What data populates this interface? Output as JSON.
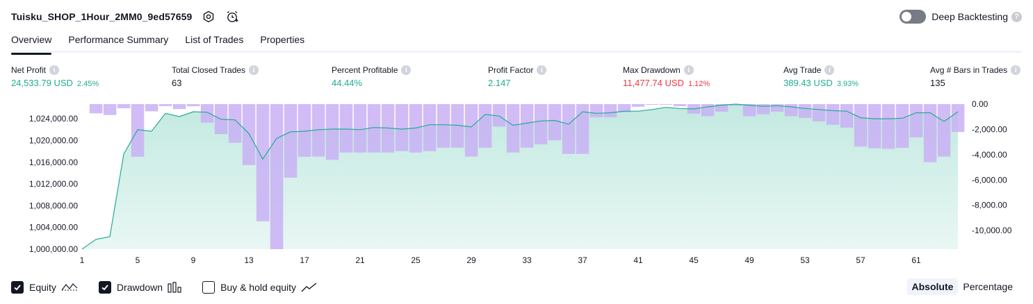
{
  "header": {
    "title": "Tuisku_SHOP_1Hour_2MM0_9ed57659",
    "icons": [
      "settings-icon",
      "alarm-add-icon"
    ]
  },
  "deep_backtesting": {
    "label": "Deep Backtesting",
    "enabled": false
  },
  "tabs": [
    {
      "label": "Overview",
      "active": true
    },
    {
      "label": "Performance Summary",
      "active": false
    },
    {
      "label": "List of Trades",
      "active": false
    },
    {
      "label": "Properties",
      "active": false
    }
  ],
  "metrics": [
    {
      "label": "Net Profit",
      "value": "24,533.79 USD",
      "sub": "2.45%",
      "color": "#22ab94"
    },
    {
      "label": "Total Closed Trades",
      "value": "63",
      "sub": "",
      "color": "#131722"
    },
    {
      "label": "Percent Profitable",
      "value": "44.44%",
      "sub": "",
      "color": "#22ab94"
    },
    {
      "label": "Profit Factor",
      "value": "2.147",
      "sub": "",
      "color": "#22ab94"
    },
    {
      "label": "Max Drawdown",
      "value": "11,477.74 USD",
      "sub": "1.12%",
      "color": "#f23645"
    },
    {
      "label": "Avg Trade",
      "value": "389.43 USD",
      "sub": "3.93%",
      "color": "#22ab94"
    },
    {
      "label": "Avg # Bars in Trades",
      "value": "135",
      "sub": "",
      "color": "#131722"
    }
  ],
  "chart_data": {
    "type": "area",
    "x_ticks": [
      "1",
      "5",
      "9",
      "13",
      "17",
      "21",
      "25",
      "29",
      "33",
      "37",
      "41",
      "45",
      "49",
      "53",
      "57",
      "61"
    ],
    "left_axis_ticks": [
      "1,024,000.00",
      "1,020,000.00",
      "1,016,000.00",
      "1,012,000.00",
      "1,008,000.00",
      "1,004,000.00",
      "1,000,000.00"
    ],
    "right_axis_ticks": [
      "0.00",
      "-2,000.00",
      "-4,000.00",
      "-6,000.00",
      "-8,000.00",
      "-10,000.00"
    ],
    "left_ylim": [
      1000000,
      1026700
    ],
    "right_ylim": [
      -11477.74,
      0
    ],
    "x": [
      1,
      2,
      3,
      4,
      5,
      6,
      7,
      8,
      9,
      10,
      11,
      12,
      13,
      14,
      15,
      16,
      17,
      18,
      19,
      20,
      21,
      22,
      23,
      24,
      25,
      26,
      27,
      28,
      29,
      30,
      31,
      32,
      33,
      34,
      35,
      36,
      37,
      38,
      39,
      40,
      41,
      42,
      43,
      44,
      45,
      46,
      47,
      48,
      49,
      50,
      51,
      52,
      53,
      54,
      55,
      56,
      57,
      58,
      59,
      60,
      61,
      62,
      63,
      64
    ],
    "series": [
      {
        "name": "Equity",
        "values": [
          1000000,
          1001800,
          1002300,
          1017500,
          1022000,
          1021700,
          1025000,
          1024400,
          1025300,
          1025200,
          1023900,
          1023800,
          1021300,
          1016600,
          1020400,
          1021600,
          1021700,
          1022000,
          1022100,
          1022100,
          1022000,
          1022400,
          1022300,
          1022100,
          1022300,
          1022900,
          1022900,
          1022800,
          1022500,
          1024800,
          1024500,
          1022800,
          1023200,
          1023600,
          1023700,
          1023000,
          1025300,
          1025000,
          1025100,
          1025400,
          1025400,
          1025700,
          1026100,
          1025900,
          1025800,
          1026200,
          1026500,
          1026700,
          1026500,
          1026300,
          1026400,
          1026200,
          1025900,
          1025700,
          1025500,
          1025400,
          1024200,
          1024000,
          1024000,
          1024100,
          1025100,
          1025100,
          1023500,
          1025300
        ]
      },
      {
        "name": "Drawdown",
        "values": [
          0,
          -730,
          -860,
          -330,
          -4170,
          -570,
          -160,
          -390,
          -170,
          -1470,
          -2380,
          -3060,
          -4820,
          -9270,
          -11477.74,
          -5820,
          -4170,
          -4150,
          -4410,
          -3830,
          -3830,
          -3830,
          -3830,
          -3720,
          -3830,
          -3720,
          -3450,
          -3450,
          -4150,
          -3450,
          -1780,
          -3830,
          -3450,
          -3180,
          -2860,
          -3940,
          -3940,
          -1040,
          -1040,
          -650,
          -210,
          -50,
          -30,
          -170,
          -760,
          -950,
          -600,
          -130,
          -960,
          -800,
          -600,
          -960,
          -1090,
          -1370,
          -1640,
          -1860,
          -3360,
          -3500,
          -3540,
          -3460,
          -2630,
          -4590,
          -4150,
          -2200
        ]
      }
    ],
    "colors": {
      "equity_line": "#22ab94",
      "equity_fill": "#bfe8df",
      "drawdown_bar": "#c9b0f5"
    }
  },
  "legend": [
    {
      "label": "Equity",
      "checked": true,
      "icon": "equity-line-icon"
    },
    {
      "label": "Drawdown",
      "checked": true,
      "icon": "drawdown-bars-icon"
    },
    {
      "label": "Buy & hold equity",
      "checked": false,
      "icon": "buy-hold-line-icon"
    }
  ],
  "mode": {
    "absolute_label": "Absolute",
    "percentage_label": "Percentage",
    "selected": "Absolute"
  }
}
